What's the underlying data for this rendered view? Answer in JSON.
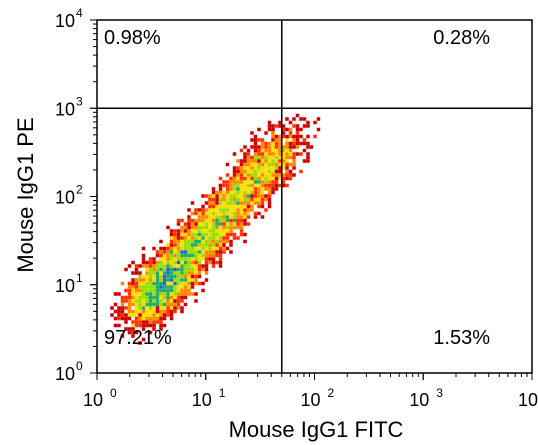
{
  "chart_data": {
    "type": "scatter",
    "subtype": "flow-cytometry-density-dot-plot",
    "xlabel": "Mouse IgG1 FITC",
    "ylabel": "Mouse IgG1 PE",
    "x_scale": "log",
    "y_scale": "log",
    "xlim": [
      1,
      10000
    ],
    "ylim": [
      1,
      10000
    ],
    "x_ticks": [
      {
        "base": "10",
        "exp": "0",
        "value": 1
      },
      {
        "base": "10",
        "exp": "1",
        "value": 10
      },
      {
        "base": "10",
        "exp": "2",
        "value": 100
      },
      {
        "base": "10",
        "exp": "3",
        "value": 1000
      },
      {
        "base": "10",
        "exp": "4",
        "value": 10000
      }
    ],
    "y_ticks": [
      {
        "base": "10",
        "exp": "0",
        "value": 1
      },
      {
        "base": "10",
        "exp": "1",
        "value": 10
      },
      {
        "base": "10",
        "exp": "2",
        "value": 100
      },
      {
        "base": "10",
        "exp": "3",
        "value": 1000
      },
      {
        "base": "10",
        "exp": "4",
        "value": 10000
      }
    ],
    "gate": {
      "x": 50,
      "y": 1000
    },
    "quadrants": {
      "upper_left": "0.98%",
      "upper_right": "0.28%",
      "lower_left": "97.21%",
      "lower_right": "1.53%"
    },
    "density_colors": [
      "#cc0000",
      "#ff3300",
      "#ff8800",
      "#ffdd00",
      "#99dd00",
      "#22aa66",
      "#2266cc"
    ],
    "population": {
      "center_x": 3,
      "center_y": 7,
      "diagonal_extent_x": [
        1.2,
        110
      ],
      "diagonal_extent_y": [
        1.5,
        3000
      ]
    },
    "grid": false
  }
}
